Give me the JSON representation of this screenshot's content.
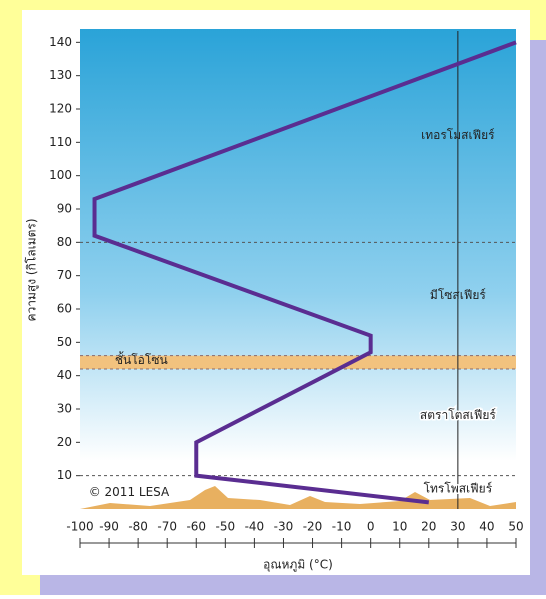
{
  "chart_data": {
    "type": "line",
    "x_label": "อุณหภูมิ (°C)",
    "y_label": "ความสูง (กิโลเมตร)",
    "x": [
      20,
      -60,
      -60,
      0,
      0,
      -95,
      -95,
      50
    ],
    "series": [
      {
        "color": "#5a2d91",
        "values": [
          2,
          10,
          20,
          47,
          52,
          82,
          93,
          140
        ]
      }
    ],
    "xlim": [
      -100,
      50
    ],
    "xticks": [
      -100,
      -90,
      -80,
      -70,
      -60,
      -50,
      -40,
      -30,
      -20,
      -10,
      0,
      10,
      20,
      30,
      40,
      50
    ],
    "ylim": [
      0,
      144
    ],
    "yticks": [
      10,
      20,
      30,
      40,
      50,
      60,
      70,
      80,
      90,
      100,
      110,
      120,
      130,
      140
    ],
    "boundaries": [
      10,
      80
    ],
    "ozone_band": [
      42,
      46
    ],
    "layers": [
      "เทอรโมสเฟียร์",
      "มีโซสเฟียร์",
      "สตราโตสเฟียร์",
      "โทรโพสเฟียร์"
    ],
    "ozone_label": "ชั้นโอโซน",
    "credit": "© 2011 LESA"
  }
}
